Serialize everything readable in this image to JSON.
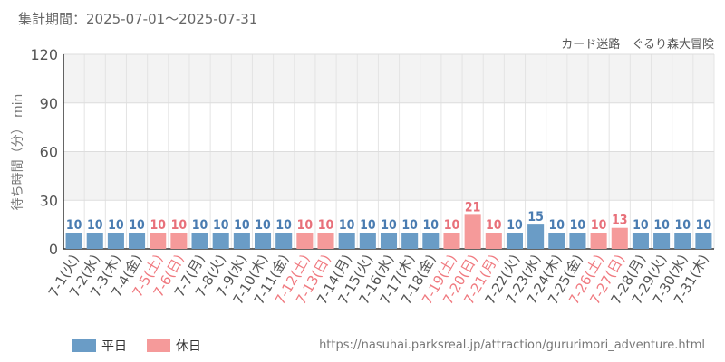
{
  "header": {
    "period": "集計期間：2025-07-01～2025-07-31",
    "attraction": "カード迷路　ぐるり森大冒険"
  },
  "footer": {
    "url": "https://nasuhai.parksreal.jp/attraction/gururimori_adventure.html"
  },
  "legend": [
    {
      "label": "平日",
      "color": "#6a9cc6"
    },
    {
      "label": "休日",
      "color": "#f59a9a"
    }
  ],
  "colors": {
    "weekday": "#6a9cc6",
    "holiday": "#f59a9a",
    "weekday_text": "#4a7cb1",
    "holiday_text": "#e8707a",
    "tick_weekday": "#555555",
    "tick_holiday": "#f07a80"
  },
  "chart_data": {
    "type": "bar",
    "ylabel": "待ち時間（分） min",
    "ylim": [
      0,
      120
    ],
    "yticks": [
      0,
      30,
      60,
      90,
      120
    ],
    "grid": true,
    "legend_position": "bottom-left",
    "categories": [
      "7-1(火)",
      "7-2(水)",
      "7-3(木)",
      "7-4(金)",
      "7-5(土)",
      "7-6(日)",
      "7-7(月)",
      "7-8(火)",
      "7-9(水)",
      "7-10(木)",
      "7-11(金)",
      "7-12(土)",
      "7-13(日)",
      "7-14(月)",
      "7-15(火)",
      "7-16(水)",
      "7-17(木)",
      "7-18(金)",
      "7-19(土)",
      "7-20(日)",
      "7-21(月)",
      "7-22(火)",
      "7-23(水)",
      "7-24(木)",
      "7-25(金)",
      "7-26(土)",
      "7-27(日)",
      "7-28(月)",
      "7-29(火)",
      "7-30(水)",
      "7-31(木)"
    ],
    "values": [
      10,
      10,
      10,
      10,
      10,
      10,
      10,
      10,
      10,
      10,
      10,
      10,
      10,
      10,
      10,
      10,
      10,
      10,
      10,
      21,
      10,
      10,
      15,
      10,
      10,
      10,
      13,
      10,
      10,
      10,
      10
    ],
    "day_type": [
      "平日",
      "平日",
      "平日",
      "平日",
      "休日",
      "休日",
      "平日",
      "平日",
      "平日",
      "平日",
      "平日",
      "休日",
      "休日",
      "平日",
      "平日",
      "平日",
      "平日",
      "平日",
      "休日",
      "休日",
      "休日",
      "平日",
      "平日",
      "平日",
      "平日",
      "休日",
      "休日",
      "平日",
      "平日",
      "平日",
      "平日"
    ]
  }
}
